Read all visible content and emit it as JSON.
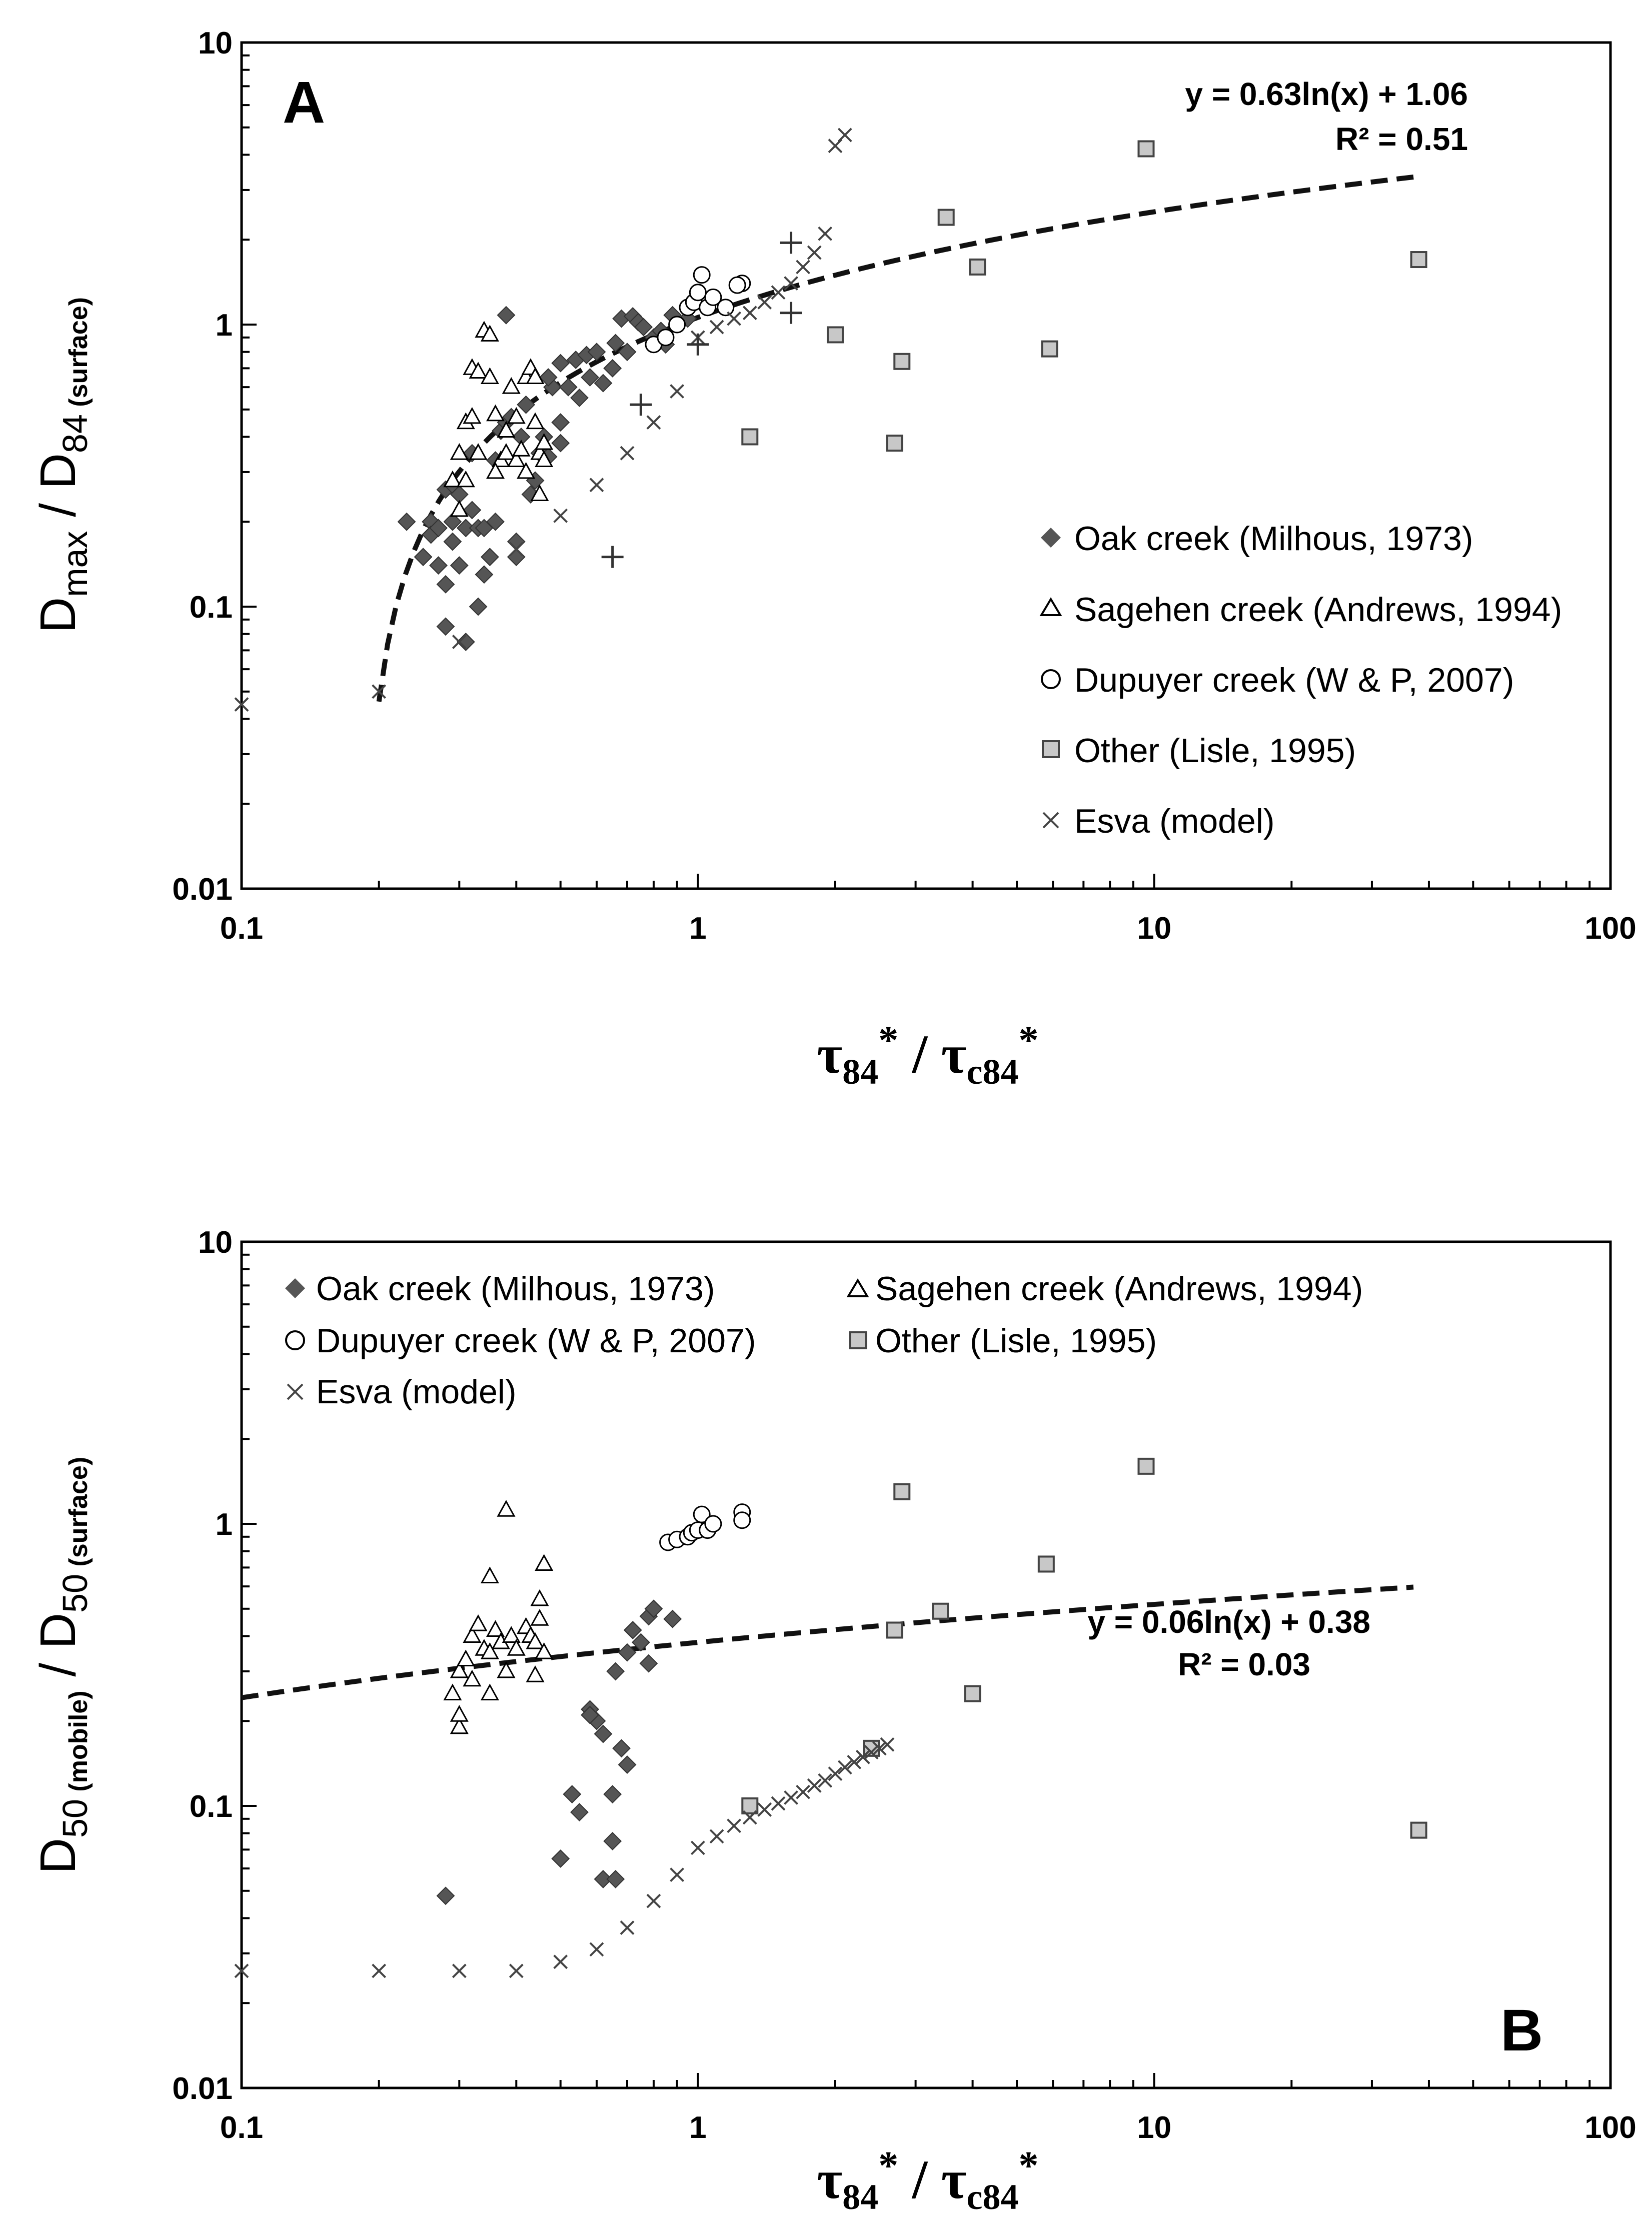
{
  "colors": {
    "diamond": "#555555",
    "square_fill": "#c8c8c8",
    "line": "#111111"
  },
  "chart_data": [
    {
      "type": "scatter",
      "panel": "A",
      "xscale": "log",
      "yscale": "log",
      "xlim": [
        0.1,
        100
      ],
      "ylim": [
        0.01,
        10
      ],
      "xticks": [
        "0.1",
        "1",
        "10",
        "100"
      ],
      "yticks": [
        "0.01",
        "0.1",
        "1",
        "10"
      ],
      "xlabel": {
        "tau": "τ",
        "sub84": "84",
        "star": "*",
        "slash": " / ",
        "subc84": "c84"
      },
      "ylabel": {
        "d1": "D",
        "max": "max",
        "slash": " / D",
        "sub84": "84",
        "surface": " (surface)"
      },
      "equation": "y = 0.63ln(x) + 1.06",
      "r2": "R² = 0.51",
      "trendline": {
        "a": 0.63,
        "b": 1.06,
        "x_from": 0.2,
        "x_to": 37
      },
      "legend": [
        {
          "marker": "diamond",
          "label": "Oak creek (Milhous, 1973)"
        },
        {
          "marker": "triangle",
          "label": "Sagehen creek (Andrews, 1994)"
        },
        {
          "marker": "circle",
          "label": "Dupuyer creek (W & P, 2007)"
        },
        {
          "marker": "square",
          "label": "Other (Lisle, 1995)"
        },
        {
          "marker": "x",
          "label": "Esva (model)"
        }
      ],
      "series": [
        {
          "name": "Oak creek (Milhous, 1973)",
          "marker": "diamond",
          "points": [
            [
              0.23,
              0.2
            ],
            [
              0.25,
              0.15
            ],
            [
              0.26,
              0.2
            ],
            [
              0.26,
              0.18
            ],
            [
              0.27,
              0.19
            ],
            [
              0.27,
              0.14
            ],
            [
              0.28,
              0.26
            ],
            [
              0.28,
              0.12
            ],
            [
              0.28,
              0.085
            ],
            [
              0.29,
              0.17
            ],
            [
              0.29,
              0.2
            ],
            [
              0.29,
              0.27
            ],
            [
              0.3,
              0.14
            ],
            [
              0.3,
              0.25
            ],
            [
              0.31,
              0.075
            ],
            [
              0.31,
              0.19
            ],
            [
              0.32,
              0.22
            ],
            [
              0.32,
              0.35
            ],
            [
              0.33,
              0.1
            ],
            [
              0.33,
              0.19
            ],
            [
              0.34,
              0.19
            ],
            [
              0.34,
              0.13
            ],
            [
              0.35,
              0.15
            ],
            [
              0.36,
              0.2
            ],
            [
              0.36,
              0.33
            ],
            [
              0.37,
              0.42
            ],
            [
              0.38,
              0.45
            ],
            [
              0.38,
              1.08
            ],
            [
              0.39,
              0.47
            ],
            [
              0.4,
              0.17
            ],
            [
              0.4,
              0.15
            ],
            [
              0.41,
              0.4
            ],
            [
              0.42,
              0.52
            ],
            [
              0.43,
              0.25
            ],
            [
              0.44,
              0.28
            ],
            [
              0.45,
              0.35
            ],
            [
              0.46,
              0.4
            ],
            [
              0.47,
              0.34
            ],
            [
              0.48,
              0.6
            ],
            [
              0.5,
              0.38
            ],
            [
              0.5,
              0.45
            ],
            [
              0.52,
              0.6
            ],
            [
              0.54,
              0.75
            ],
            [
              0.57,
              0.78
            ],
            [
              0.6,
              0.8
            ],
            [
              0.62,
              0.62
            ],
            [
              0.65,
              0.7
            ],
            [
              0.66,
              0.86
            ],
            [
              0.68,
              1.05
            ],
            [
              0.7,
              0.8
            ],
            [
              0.72,
              1.07
            ],
            [
              0.74,
              1.02
            ],
            [
              0.76,
              0.98
            ],
            [
              0.8,
              0.9
            ],
            [
              0.83,
              0.95
            ],
            [
              0.88,
              1.08
            ],
            [
              0.95,
              1.05
            ],
            [
              0.55,
              0.55
            ],
            [
              0.58,
              0.65
            ],
            [
              0.85,
              0.85
            ],
            [
              0.47,
              0.65
            ],
            [
              0.5,
              0.73
            ]
          ]
        },
        {
          "name": "Sagehen creek (Andrews, 1994)",
          "marker": "triangle",
          "points": [
            [
              0.29,
              0.28
            ],
            [
              0.3,
              0.22
            ],
            [
              0.3,
              0.35
            ],
            [
              0.31,
              0.28
            ],
            [
              0.31,
              0.45
            ],
            [
              0.32,
              0.47
            ],
            [
              0.32,
              0.7
            ],
            [
              0.33,
              0.68
            ],
            [
              0.33,
              0.35
            ],
            [
              0.34,
              0.95
            ],
            [
              0.35,
              0.92
            ],
            [
              0.35,
              0.65
            ],
            [
              0.36,
              0.48
            ],
            [
              0.37,
              0.33
            ],
            [
              0.38,
              0.35
            ],
            [
              0.38,
              0.42
            ],
            [
              0.39,
              0.6
            ],
            [
              0.4,
              0.47
            ],
            [
              0.4,
              0.33
            ],
            [
              0.41,
              0.36
            ],
            [
              0.42,
              0.65
            ],
            [
              0.43,
              0.7
            ],
            [
              0.44,
              0.45
            ],
            [
              0.44,
              0.65
            ],
            [
              0.45,
              0.35
            ],
            [
              0.45,
              0.25
            ],
            [
              0.46,
              0.33
            ],
            [
              0.46,
              0.38
            ],
            [
              0.36,
              0.3
            ],
            [
              0.42,
              0.3
            ]
          ]
        },
        {
          "name": "Dupuyer creek (W & P, 2007)",
          "marker": "circle",
          "points": [
            [
              0.8,
              0.85
            ],
            [
              0.85,
              0.9
            ],
            [
              0.9,
              1.0
            ],
            [
              0.95,
              1.15
            ],
            [
              0.98,
              1.2
            ],
            [
              1.0,
              1.3
            ],
            [
              1.02,
              1.5
            ],
            [
              1.05,
              1.15
            ],
            [
              1.08,
              1.25
            ],
            [
              1.15,
              1.15
            ],
            [
              1.25,
              1.4
            ],
            [
              1.22,
              1.38
            ]
          ]
        },
        {
          "name": "Other (Lisle, 1995)",
          "marker": "square",
          "points": [
            [
              1.3,
              0.4
            ],
            [
              2.0,
              0.92
            ],
            [
              2.7,
              0.38
            ],
            [
              2.8,
              0.74
            ],
            [
              3.5,
              2.4
            ],
            [
              4.1,
              1.6
            ],
            [
              5.9,
              0.82
            ],
            [
              9.6,
              4.2
            ],
            [
              38,
              1.7
            ]
          ]
        },
        {
          "name": "Esva (model)",
          "marker": "x",
          "points": [
            [
              0.1,
              0.045
            ],
            [
              0.2,
              0.05
            ],
            [
              0.3,
              0.075
            ],
            [
              0.4,
              0.16
            ],
            [
              0.5,
              0.21
            ],
            [
              0.6,
              0.27
            ],
            [
              0.7,
              0.35
            ],
            [
              0.8,
              0.45
            ],
            [
              0.9,
              0.58
            ],
            [
              1.0,
              0.9
            ],
            [
              1.1,
              0.98
            ],
            [
              1.2,
              1.05
            ],
            [
              1.3,
              1.1
            ],
            [
              1.4,
              1.2
            ],
            [
              1.5,
              1.3
            ],
            [
              1.6,
              1.4
            ],
            [
              1.7,
              1.6
            ],
            [
              1.8,
              1.8
            ],
            [
              1.9,
              2.1
            ],
            [
              2.0,
              4.3
            ],
            [
              2.1,
              4.7
            ]
          ]
        },
        {
          "name": "unlabeled",
          "marker": "plus",
          "points": [
            [
              0.65,
              0.15
            ],
            [
              0.75,
              0.52
            ],
            [
              1.0,
              0.85
            ],
            [
              1.6,
              1.95
            ],
            [
              1.6,
              1.1
            ]
          ]
        }
      ]
    },
    {
      "type": "scatter",
      "panel": "B",
      "xscale": "log",
      "yscale": "log",
      "xlim": [
        0.1,
        100
      ],
      "ylim": [
        0.01,
        10
      ],
      "xticks": [
        "0.1",
        "1",
        "10",
        "100"
      ],
      "yticks": [
        "0.01",
        "0.1",
        "1",
        "10"
      ],
      "xlabel": {
        "tau": "τ",
        "sub84": "84",
        "star": "*",
        "slash": " / ",
        "subc84": "c84"
      },
      "ylabel": {
        "d1": "D",
        "sub50": "50",
        "mobile": " (mobile)",
        "slash": " / D",
        "sub50b": "50",
        "surface": " (surface)"
      },
      "equation": "y = 0.06ln(x) + 0.38",
      "r2": "R² = 0.03",
      "trendline": {
        "a": 0.06,
        "b": 0.38,
        "x_from": 0.1,
        "x_to": 37
      },
      "legend": [
        {
          "marker": "diamond",
          "label": "Oak creek (Milhous, 1973)"
        },
        {
          "marker": "triangle",
          "label": "Sagehen creek (Andrews, 1994)"
        },
        {
          "marker": "circle",
          "label": "Dupuyer creek (W & P, 2007)"
        },
        {
          "marker": "square",
          "label": "Other (Lisle, 1995)"
        },
        {
          "marker": "x",
          "label": "Esva (model)"
        }
      ],
      "series": [
        {
          "name": "Oak creek (Milhous, 1973)",
          "marker": "diamond",
          "points": [
            [
              0.28,
              0.048
            ],
            [
              0.5,
              0.065
            ],
            [
              0.53,
              0.11
            ],
            [
              0.55,
              0.095
            ],
            [
              0.58,
              0.22
            ],
            [
              0.6,
              0.2
            ],
            [
              0.62,
              0.18
            ],
            [
              0.62,
              0.055
            ],
            [
              0.65,
              0.075
            ],
            [
              0.65,
              0.11
            ],
            [
              0.66,
              0.055
            ],
            [
              0.66,
              0.3
            ],
            [
              0.68,
              0.16
            ],
            [
              0.7,
              0.35
            ],
            [
              0.7,
              0.14
            ],
            [
              0.72,
              0.42
            ],
            [
              0.75,
              0.38
            ],
            [
              0.78,
              0.47
            ],
            [
              0.8,
              0.5
            ],
            [
              0.78,
              0.32
            ],
            [
              0.88,
              0.46
            ],
            [
              0.58,
              0.21
            ]
          ]
        },
        {
          "name": "Sagehen creek (Andrews, 1994)",
          "marker": "triangle",
          "points": [
            [
              0.29,
              0.25
            ],
            [
              0.3,
              0.19
            ],
            [
              0.3,
              0.21
            ],
            [
              0.3,
              0.3
            ],
            [
              0.31,
              0.33
            ],
            [
              0.32,
              0.28
            ],
            [
              0.32,
              0.4
            ],
            [
              0.33,
              0.44
            ],
            [
              0.34,
              0.36
            ],
            [
              0.35,
              0.35
            ],
            [
              0.35,
              0.65
            ],
            [
              0.35,
              0.25
            ],
            [
              0.36,
              0.42
            ],
            [
              0.37,
              0.38
            ],
            [
              0.38,
              1.12
            ],
            [
              0.38,
              0.3
            ],
            [
              0.39,
              0.4
            ],
            [
              0.4,
              0.36
            ],
            [
              0.42,
              0.43
            ],
            [
              0.43,
              0.4
            ],
            [
              0.44,
              0.29
            ],
            [
              0.44,
              0.38
            ],
            [
              0.45,
              0.46
            ],
            [
              0.45,
              0.54
            ],
            [
              0.46,
              0.72
            ],
            [
              0.46,
              0.35
            ]
          ]
        },
        {
          "name": "Dupuyer creek (W & P, 2007)",
          "marker": "circle",
          "points": [
            [
              0.86,
              0.86
            ],
            [
              0.9,
              0.88
            ],
            [
              0.95,
              0.9
            ],
            [
              0.97,
              0.93
            ],
            [
              1.0,
              0.95
            ],
            [
              1.02,
              1.08
            ],
            [
              1.05,
              0.95
            ],
            [
              1.08,
              1.0
            ],
            [
              1.25,
              1.1
            ],
            [
              1.25,
              1.03
            ]
          ]
        },
        {
          "name": "Other (Lisle, 1995)",
          "marker": "square",
          "points": [
            [
              1.3,
              0.1
            ],
            [
              2.4,
              0.16
            ],
            [
              2.7,
              0.42
            ],
            [
              2.8,
              1.3
            ],
            [
              3.4,
              0.49
            ],
            [
              4.0,
              0.25
            ],
            [
              5.8,
              0.72
            ],
            [
              9.6,
              1.6
            ],
            [
              38,
              0.082
            ]
          ]
        },
        {
          "name": "Esva (model)",
          "marker": "x",
          "points": [
            [
              0.1,
              0.026
            ],
            [
              0.2,
              0.026
            ],
            [
              0.3,
              0.026
            ],
            [
              0.4,
              0.026
            ],
            [
              0.5,
              0.028
            ],
            [
              0.6,
              0.031
            ],
            [
              0.7,
              0.037
            ],
            [
              0.8,
              0.046
            ],
            [
              0.9,
              0.057
            ],
            [
              1.0,
              0.071
            ],
            [
              1.1,
              0.078
            ],
            [
              1.2,
              0.085
            ],
            [
              1.3,
              0.091
            ],
            [
              1.4,
              0.097
            ],
            [
              1.5,
              0.102
            ],
            [
              1.6,
              0.107
            ],
            [
              1.7,
              0.112
            ],
            [
              1.8,
              0.118
            ],
            [
              1.9,
              0.123
            ],
            [
              2.0,
              0.13
            ],
            [
              2.1,
              0.137
            ],
            [
              2.2,
              0.143
            ],
            [
              2.3,
              0.149
            ],
            [
              2.4,
              0.155
            ],
            [
              2.5,
              0.16
            ],
            [
              2.6,
              0.165
            ]
          ]
        }
      ]
    }
  ]
}
